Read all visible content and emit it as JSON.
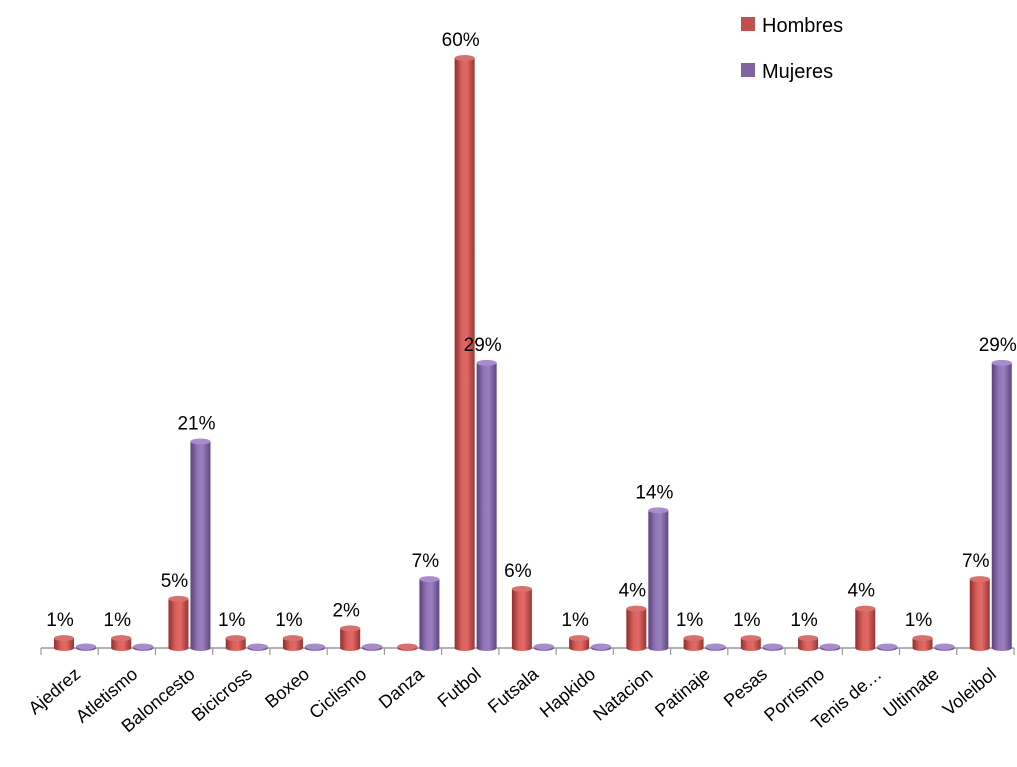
{
  "chart_data": {
    "type": "bar",
    "categories": [
      "Ajedrez",
      "Atletismo",
      "Baloncesto",
      "Bicicross",
      "Boxeo",
      "Ciclismo",
      "Danza",
      "Futbol",
      "Futsala",
      "Hapkido",
      "Natacion",
      "Patinaje",
      "Pesas",
      "Porrismo",
      "Tenis de…",
      "Ultimate",
      "Voleibol"
    ],
    "series": [
      {
        "name": "Hombres",
        "color": "#c0504d",
        "values": [
          1,
          1,
          5,
          1,
          1,
          2,
          0,
          60,
          6,
          1,
          4,
          1,
          1,
          1,
          4,
          1,
          7
        ],
        "labels": [
          "1%",
          "1%",
          "5%",
          "1%",
          "1%",
          "2%",
          "",
          "60%",
          "6%",
          "1%",
          "4%",
          "1%",
          "1%",
          "1%",
          "4%",
          "1%",
          "7%"
        ]
      },
      {
        "name": "Mujeres",
        "color": "#8064a2",
        "values": [
          0,
          0,
          21,
          0,
          0,
          0,
          7,
          29,
          0,
          0,
          14,
          0,
          0,
          0,
          0,
          0,
          29
        ],
        "labels": [
          "",
          "",
          "21%",
          "",
          "",
          "",
          "7%",
          "29%",
          "",
          "",
          "14%",
          "",
          "",
          "",
          "",
          "",
          "29%"
        ]
      }
    ],
    "ylim": [
      0,
      60
    ],
    "legend": "top-right",
    "grid": false
  }
}
